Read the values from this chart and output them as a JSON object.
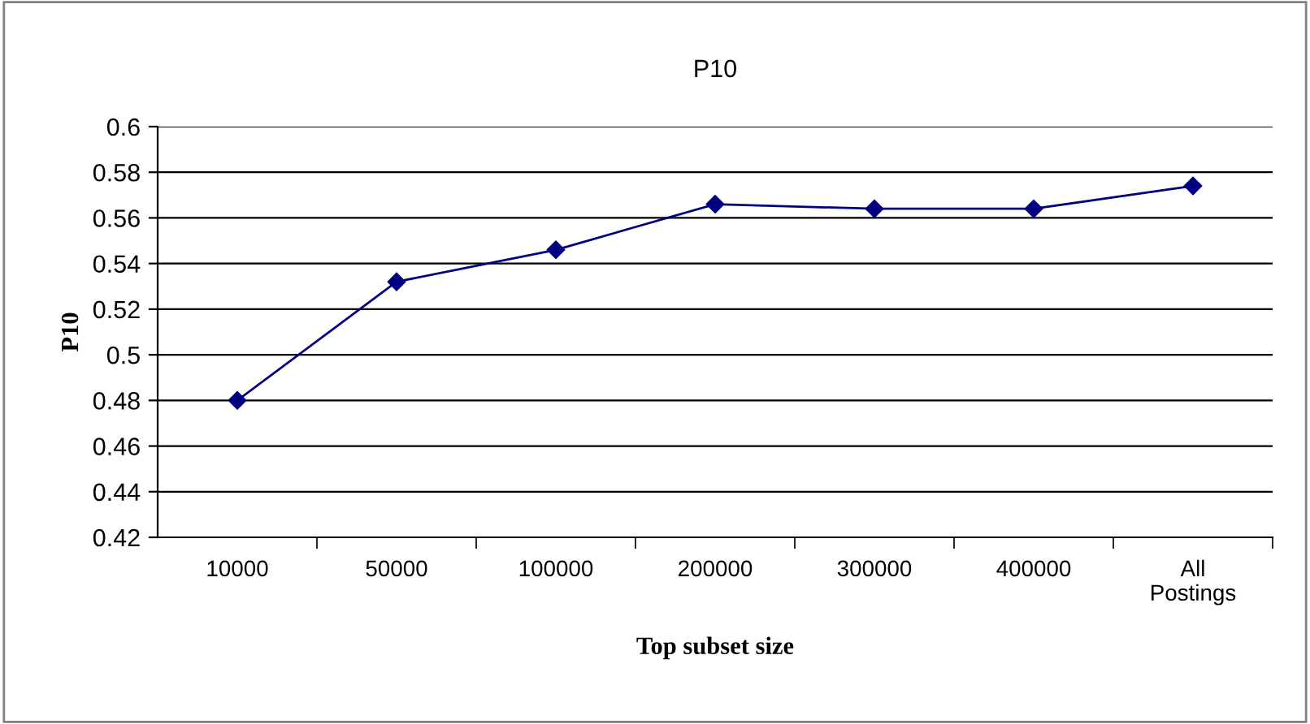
{
  "chart_data": {
    "type": "line",
    "title": "P10",
    "xlabel": "Top subset size",
    "ylabel": "P10",
    "categories": [
      "10000",
      "50000",
      "100000",
      "200000",
      "300000",
      "400000",
      "All\nPostings"
    ],
    "series": [
      {
        "color": "#000080",
        "values": [
          0.48,
          0.532,
          0.546,
          0.566,
          0.564,
          0.564,
          0.574
        ]
      }
    ],
    "ylim": [
      0.42,
      0.6
    ],
    "yticks": [
      0.42,
      0.44,
      0.46,
      0.48,
      0.5,
      0.52,
      0.54,
      0.56,
      0.58,
      0.6
    ],
    "grid": "y",
    "marker": "diamond",
    "line_style": "solid"
  }
}
